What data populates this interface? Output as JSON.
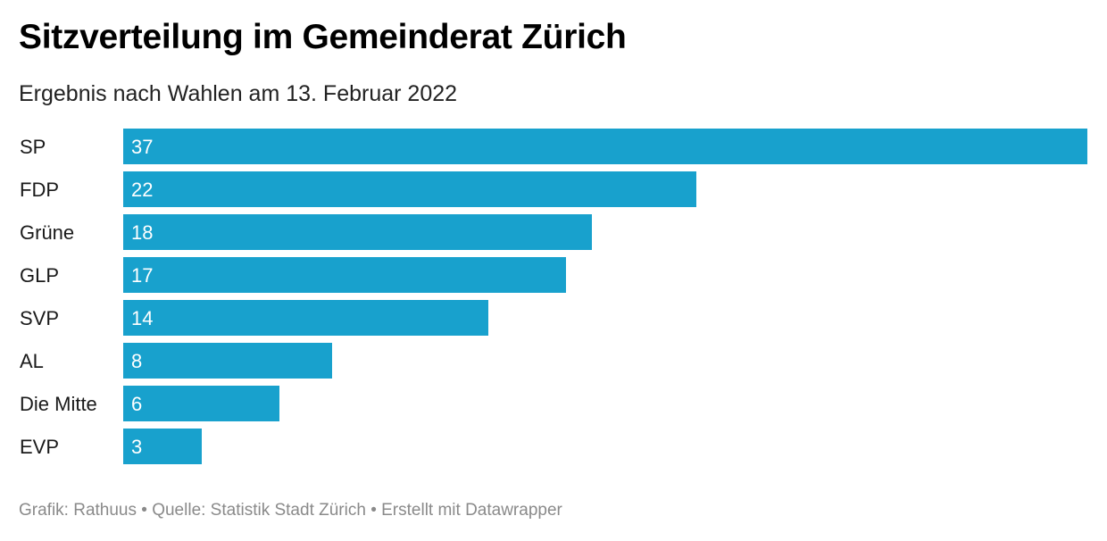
{
  "title": "Sitzverteilung im Gemeinderat Zürich",
  "subtitle": "Ergebnis nach Wahlen am 13. Februar 2022",
  "footer": "Grafik: Rathuus • Quelle: Statistik Stadt Zürich • Erstellt mit Datawrapper",
  "colors": {
    "bar": "#18a1cd",
    "value_label": "#ffffff",
    "footer": "#8a8a8a"
  },
  "chart_data": {
    "type": "bar",
    "orientation": "horizontal",
    "title": "Sitzverteilung im Gemeinderat Zürich",
    "subtitle": "Ergebnis nach Wahlen am 13. Februar 2022",
    "categories": [
      "SP",
      "FDP",
      "Grüne",
      "GLP",
      "SVP",
      "AL",
      "Die Mitte",
      "EVP"
    ],
    "values": [
      37,
      22,
      18,
      17,
      14,
      8,
      6,
      3
    ],
    "value_labels": [
      "37",
      "22",
      "18",
      "17",
      "14",
      "8",
      "6",
      "3"
    ],
    "xlim": [
      0,
      37
    ],
    "grid": false,
    "legend": "none"
  }
}
